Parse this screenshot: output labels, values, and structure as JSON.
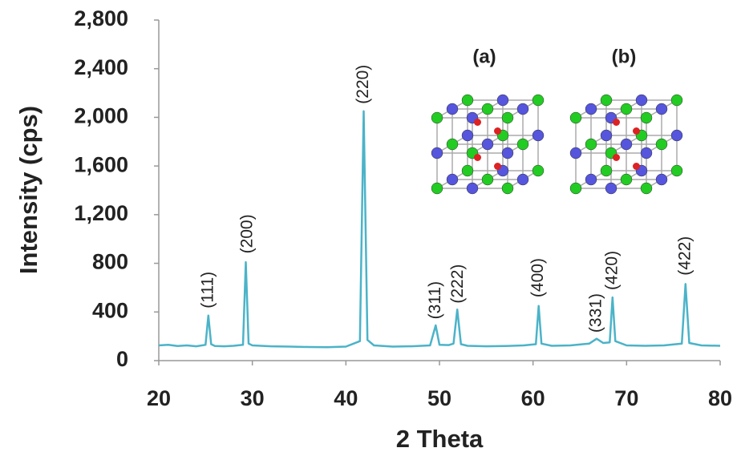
{
  "chart_data": {
    "type": "line",
    "x_label": "2 Theta",
    "y_label": "Intensity (cps)",
    "x": [
      20,
      21,
      22,
      23,
      24,
      25,
      25.3,
      25.6,
      26,
      27,
      28,
      29,
      29.3,
      29.6,
      30,
      32,
      34,
      36,
      38,
      40,
      41.5,
      41.9,
      42.3,
      43,
      45,
      47,
      49,
      49.6,
      50,
      51,
      51.5,
      51.9,
      52.3,
      53,
      55,
      57,
      59,
      60.3,
      60.6,
      60.9,
      62,
      64,
      66,
      66.8,
      67.5,
      68.2,
      68.5,
      68.8,
      70,
      72,
      74,
      75.9,
      76.3,
      76.7,
      78,
      80
    ],
    "values": [
      125,
      130,
      120,
      125,
      118,
      130,
      370,
      135,
      120,
      118,
      122,
      130,
      810,
      140,
      125,
      118,
      115,
      112,
      110,
      115,
      160,
      2050,
      170,
      125,
      115,
      118,
      125,
      290,
      130,
      128,
      140,
      420,
      135,
      122,
      118,
      120,
      125,
      135,
      450,
      140,
      122,
      125,
      140,
      180,
      145,
      150,
      520,
      160,
      125,
      122,
      125,
      140,
      630,
      145,
      125,
      122
    ],
    "color": "#4bb3c8",
    "xlim": [
      20,
      80
    ],
    "xticks": [
      20,
      30,
      40,
      50,
      60,
      70,
      80
    ],
    "ylim": [
      0,
      2800
    ],
    "yticks": [
      0,
      400,
      800,
      {
        "value": 1200,
        "label": "1,200"
      },
      {
        "value": 1600,
        "label": "1,600"
      },
      {
        "value": 2000,
        "label": "2,000"
      },
      {
        "value": 2400,
        "label": "2,400"
      },
      {
        "value": 2800,
        "label": "2,800"
      }
    ],
    "annotations": [
      {
        "text": "(111)",
        "x": 25.3,
        "y": 430
      },
      {
        "text": "(200)",
        "x": 29.5,
        "y": 880
      },
      {
        "text": "(220)",
        "x": 41.9,
        "y": 2110
      },
      {
        "text": "(311)",
        "x": 49.6,
        "y": 340
      },
      {
        "text": "(222)",
        "x": 52.0,
        "y": 470
      },
      {
        "text": "(400)",
        "x": 60.6,
        "y": 520
      },
      {
        "text": "(331)",
        "x": 66.8,
        "y": 230
      },
      {
        "text": "(420)",
        "x": 68.5,
        "y": 580
      },
      {
        "text": "(422)",
        "x": 76.3,
        "y": 700
      }
    ],
    "insets": [
      "(a)",
      "(b)"
    ]
  }
}
